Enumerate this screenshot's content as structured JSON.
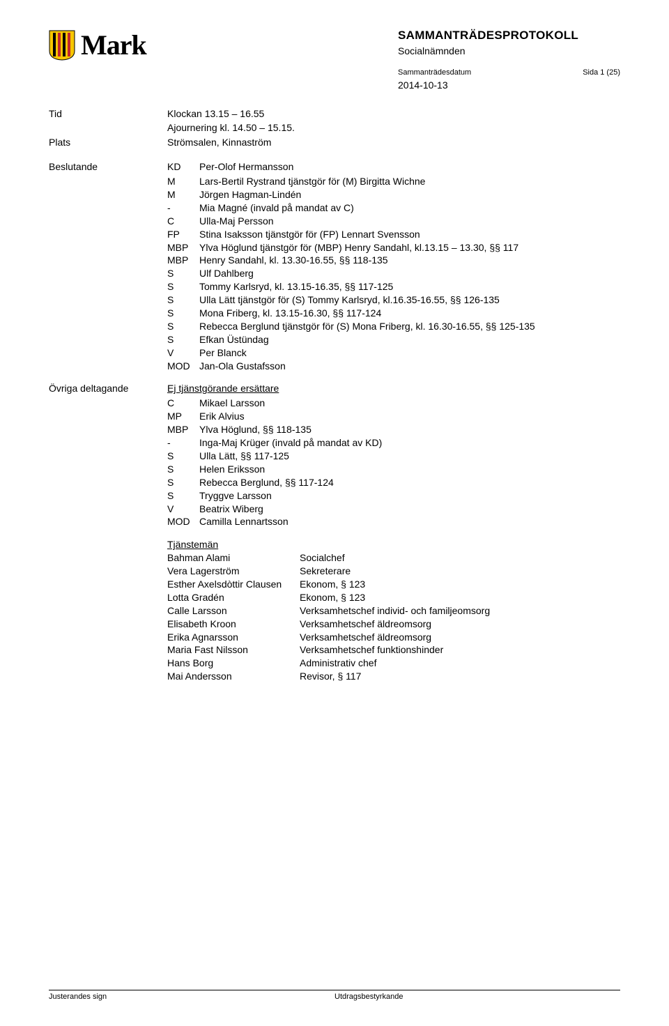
{
  "brand": "Mark",
  "doc_title": "SAMMANTRÄDESPROTOKOLL",
  "doc_subtitle": "Socialnämnden",
  "meta_label_date": "Sammanträdesdatum",
  "meta_label_page": "Sida 1 (25)",
  "meeting_date": "2014-10-13",
  "tid_label": "Tid",
  "tid_line1": "Klockan 13.15 – 16.55",
  "tid_line2": "Ajournering kl. 14.50 – 15.15.",
  "plats_label": "Plats",
  "plats_value": "Strömsalen, Kinnaström",
  "beslutande_label": "Beslutande",
  "beslutande": [
    {
      "p": "KD",
      "n": "Per-Olof Hermansson"
    },
    {
      "p": "M",
      "n": "Lars-Bertil Rystrand tjänstgör för (M) Birgitta Wichne"
    },
    {
      "p": "M",
      "n": "Jörgen Hagman-Lindén"
    },
    {
      "p": "-",
      "n": "Mia Magné (invald på mandat av C)"
    },
    {
      "p": "C",
      "n": "Ulla-Maj Persson"
    },
    {
      "p": "FP",
      "n": "Stina Isaksson tjänstgör för (FP) Lennart Svensson"
    },
    {
      "p": "MBP",
      "n": "Ylva Höglund tjänstgör för (MBP) Henry Sandahl, kl.13.15 – 13.30, §§ 117"
    },
    {
      "p": "MBP",
      "n": "Henry Sandahl, kl. 13.30-16.55, §§ 118-135"
    },
    {
      "p": "S",
      "n": "Ulf Dahlberg"
    },
    {
      "p": "S",
      "n": "Tommy Karlsryd, kl. 13.15-16.35, §§ 117-125"
    },
    {
      "p": "S",
      "n": "Ulla Lätt tjänstgör för (S) Tommy Karlsryd, kl.16.35-16.55, §§ 126-135"
    },
    {
      "p": "S",
      "n": "Mona Friberg, kl. 13.15-16.30, §§ 117-124"
    },
    {
      "p": "S",
      "n": "Rebecca Berglund tjänstgör för (S) Mona Friberg, kl. 16.30-16.55, §§ 125-135"
    },
    {
      "p": "S",
      "n": "Efkan Üstündag"
    },
    {
      "p": "V",
      "n": "Per Blanck"
    },
    {
      "p": "MOD",
      "n": "Jan-Ola Gustafsson"
    }
  ],
  "ovriga_label": "Övriga deltagande",
  "ej_label": "Ej tjänstgörande ersättare",
  "ersattare": [
    {
      "p": "C",
      "n": "Mikael Larsson"
    },
    {
      "p": "MP",
      "n": "Erik Alvius"
    },
    {
      "p": "MBP",
      "n": "Ylva Höglund, §§ 118-135"
    },
    {
      "p": "-",
      "n": "Inga-Maj Krüger (invald på mandat av KD)"
    },
    {
      "p": "S",
      "n": "Ulla Lätt, §§ 117-125"
    },
    {
      "p": "S",
      "n": "Helen Eriksson"
    },
    {
      "p": "S",
      "n": "Rebecca Berglund, §§ 117-124"
    },
    {
      "p": "S",
      "n": "Tryggve Larsson"
    },
    {
      "p": "V",
      "n": "Beatrix Wiberg"
    },
    {
      "p": "MOD",
      "n": "Camilla Lennartsson"
    }
  ],
  "tjansteman_label": "Tjänstemän",
  "tjansteman": [
    {
      "n": "Bahman Alami",
      "r": "Socialchef"
    },
    {
      "n": "Vera Lagerström",
      "r": "Sekreterare"
    },
    {
      "n": "Esther Axelsdòttir Clausen",
      "r": "Ekonom, § 123"
    },
    {
      "n": "Lotta Gradén",
      "r": "Ekonom, § 123"
    },
    {
      "n": "Calle Larsson",
      "r": "Verksamhetschef individ- och familjeomsorg"
    },
    {
      "n": "Elisabeth Kroon",
      "r": "Verksamhetschef äldreomsorg"
    },
    {
      "n": "Erika Agnarsson",
      "r": "Verksamhetschef äldreomsorg"
    },
    {
      "n": "Maria Fast Nilsson",
      "r": "Verksamhetschef funktionshinder"
    },
    {
      "n": "Hans Borg",
      "r": "Administrativ chef"
    },
    {
      "n": "Mai Andersson",
      "r": "Revisor, § 117"
    }
  ],
  "footer_left": "Justerandes sign",
  "footer_right": "Utdragsbestyrkande",
  "colors": {
    "crest_yellow": "#f7c600",
    "crest_red": "#c1272d",
    "text": "#000000",
    "bg": "#ffffff"
  }
}
